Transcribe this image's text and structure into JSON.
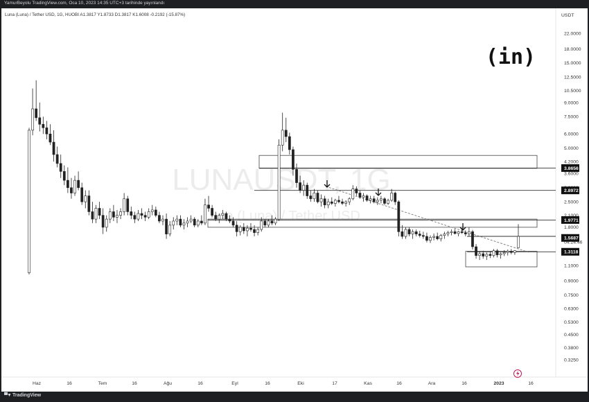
{
  "header": {
    "publisher_line": "YamurBeyolu TradingView.com, Oca 10, 2023 14:35 UTC+3 tarihinde yayınlandı"
  },
  "legend": {
    "line": "Luna (Luna) / Tether USD, 1G, HUOBI A1.3817 Y1.8733 D1.3817 K1.6008 -0.2192 (-15.87%)"
  },
  "watermark": {
    "symbol": "LUNAUSDT, 1G",
    "description": "Luna (Luna) / Tether USD"
  },
  "logo": {
    "text": "(in)"
  },
  "footer": {
    "brand": "TradingView"
  },
  "colors": {
    "up": "#ffffff",
    "down": "#222222",
    "trendline": "#777777",
    "accent_icon": "#c2185b"
  },
  "icons": [
    "down-arrow-icon",
    "lightning-icon",
    "tradingview-logo-icon"
  ],
  "chart_data": {
    "type": "candlestick",
    "title": "Luna (Luna) / Tether USD, 1G, HUOBI",
    "ylabel": "USDT",
    "y_scale": "log",
    "ylim": [
      0.29,
      24.5
    ],
    "xlabel": "",
    "x_ticks": [
      "Haz",
      "16",
      "Tem",
      "16",
      "Ağu",
      "16",
      "Eyl",
      "16",
      "Eki",
      "17",
      "Kas",
      "16",
      "Ara",
      "16",
      "2023",
      "16"
    ],
    "y_ticks": [
      "22.0000",
      "18.0000",
      "15.0000",
      "12.5000",
      "10.5000",
      "9.0000",
      "7.5000",
      "6.0000",
      "5.0000",
      "4.2000",
      "3.6000",
      "3.0000",
      "2.5000",
      "2.1000",
      "1.8000",
      "1.6008",
      "1.5687",
      "1.3118",
      "1.1000",
      "0.9000",
      "0.7500",
      "0.6300",
      "0.5300",
      "0.4500",
      "0.3800",
      "0.3250"
    ],
    "price_labels": [
      {
        "value": "3.8656",
        "style": "boxed"
      },
      {
        "value": "2.8972",
        "style": "boxed"
      },
      {
        "value": "1.9771",
        "style": "boxed"
      },
      {
        "value": "1.6008",
        "style": "plain"
      },
      {
        "value": "04:24:46",
        "style": "plain"
      },
      {
        "value": "1.5687",
        "style": "boxed"
      },
      {
        "value": "1.3118",
        "style": "boxed"
      }
    ],
    "last_price": "1.6008",
    "countdown": "04:24:46",
    "zones": [
      {
        "top": 4.55,
        "bottom": 3.85
      },
      {
        "top": 2.0,
        "bottom": 1.8
      },
      {
        "top": 1.32,
        "bottom": 1.08
      }
    ],
    "levels": [
      3.8656,
      2.8972,
      1.9771,
      1.6008,
      1.3118
    ],
    "trendline": {
      "from_price": 3.05,
      "to_price": 1.3,
      "style": "dashed"
    },
    "arrow_marks": 4,
    "ohlc": [
      [
        1.0,
        6.5,
        0.98,
        6.3
      ],
      [
        6.3,
        10.8,
        5.9,
        8.3
      ],
      [
        8.3,
        12.0,
        7.1,
        7.4
      ],
      [
        7.4,
        9.0,
        6.2,
        6.8
      ],
      [
        6.8,
        7.5,
        6.0,
        6.5
      ],
      [
        6.5,
        7.1,
        5.6,
        6.0
      ],
      [
        6.0,
        6.8,
        5.2,
        5.4
      ],
      [
        5.4,
        6.3,
        4.2,
        4.6
      ],
      [
        4.6,
        5.1,
        3.9,
        4.1
      ],
      [
        4.1,
        4.6,
        3.4,
        3.7
      ],
      [
        3.7,
        4.0,
        3.1,
        3.3
      ],
      [
        3.3,
        3.9,
        2.8,
        3.0
      ],
      [
        3.0,
        3.4,
        2.6,
        2.8
      ],
      [
        2.8,
        3.5,
        2.7,
        3.3
      ],
      [
        3.3,
        3.7,
        2.9,
        3.0
      ],
      [
        3.0,
        3.2,
        2.4,
        2.5
      ],
      [
        2.5,
        2.9,
        2.3,
        2.7
      ],
      [
        2.7,
        2.9,
        2.1,
        2.2
      ],
      [
        2.2,
        2.5,
        1.9,
        2.0
      ],
      [
        2.0,
        2.4,
        1.9,
        2.3
      ],
      [
        2.3,
        2.5,
        2.0,
        2.1
      ],
      [
        2.1,
        2.3,
        1.65,
        1.8
      ],
      [
        1.8,
        2.1,
        1.7,
        2.0
      ],
      [
        2.0,
        2.3,
        1.9,
        2.2
      ],
      [
        2.2,
        2.4,
        1.95,
        2.05
      ],
      [
        2.05,
        2.25,
        1.9,
        2.1
      ],
      [
        2.1,
        2.3,
        2.0,
        2.2
      ],
      [
        2.2,
        2.8,
        2.1,
        2.6
      ],
      [
        2.6,
        2.7,
        2.1,
        2.2
      ],
      [
        2.2,
        2.35,
        2.0,
        2.1
      ],
      [
        2.1,
        2.2,
        1.9,
        2.0
      ],
      [
        2.0,
        2.25,
        1.95,
        2.15
      ],
      [
        2.15,
        2.3,
        2.0,
        2.1
      ],
      [
        2.1,
        2.2,
        1.95,
        2.05
      ],
      [
        2.05,
        2.3,
        2.0,
        2.2
      ],
      [
        2.2,
        2.4,
        2.1,
        2.25
      ],
      [
        2.25,
        2.35,
        2.05,
        2.1
      ],
      [
        2.1,
        2.2,
        1.9,
        1.95
      ],
      [
        1.95,
        2.1,
        1.85,
        2.0
      ],
      [
        2.0,
        2.15,
        1.55,
        1.65
      ],
      [
        1.65,
        1.95,
        1.6,
        1.85
      ],
      [
        1.85,
        2.05,
        1.75,
        1.95
      ],
      [
        1.95,
        2.1,
        1.85,
        2.0
      ],
      [
        2.0,
        2.1,
        1.8,
        1.85
      ],
      [
        1.85,
        2.0,
        1.75,
        1.9
      ],
      [
        1.9,
        2.05,
        1.8,
        1.95
      ],
      [
        1.95,
        2.1,
        1.9,
        2.0
      ],
      [
        2.0,
        2.05,
        1.8,
        1.85
      ],
      [
        1.85,
        2.0,
        1.8,
        1.95
      ],
      [
        1.95,
        2.1,
        1.85,
        1.9
      ],
      [
        1.9,
        2.6,
        1.85,
        2.4
      ],
      [
        2.4,
        2.7,
        2.2,
        2.3
      ],
      [
        2.3,
        2.4,
        2.05,
        2.1
      ],
      [
        2.1,
        2.2,
        1.95,
        2.0
      ],
      [
        2.0,
        2.15,
        1.9,
        2.1
      ],
      [
        2.1,
        2.25,
        2.0,
        2.15
      ],
      [
        2.15,
        2.2,
        1.95,
        2.0
      ],
      [
        2.0,
        2.1,
        1.9,
        1.95
      ],
      [
        1.95,
        2.05,
        1.8,
        1.85
      ],
      [
        1.85,
        1.95,
        1.6,
        1.7
      ],
      [
        1.7,
        1.85,
        1.62,
        1.8
      ],
      [
        1.8,
        1.9,
        1.65,
        1.72
      ],
      [
        1.72,
        1.85,
        1.6,
        1.78
      ],
      [
        1.78,
        1.9,
        1.7,
        1.75
      ],
      [
        1.75,
        1.85,
        1.6,
        1.68
      ],
      [
        1.68,
        1.8,
        1.62,
        1.75
      ],
      [
        1.75,
        2.05,
        1.7,
        1.95
      ],
      [
        1.95,
        2.0,
        1.8,
        1.85
      ],
      [
        1.85,
        2.0,
        1.8,
        1.95
      ],
      [
        1.95,
        2.1,
        1.85,
        1.9
      ],
      [
        1.9,
        2.05,
        1.85,
        2.0
      ],
      [
        2.0,
        5.6,
        1.95,
        5.2
      ],
      [
        5.2,
        7.9,
        4.8,
        6.3
      ],
      [
        6.3,
        7.4,
        5.4,
        5.8
      ],
      [
        5.8,
        6.1,
        4.6,
        4.9
      ],
      [
        4.9,
        5.1,
        3.5,
        3.8
      ],
      [
        3.8,
        4.1,
        3.0,
        3.2
      ],
      [
        3.2,
        3.5,
        2.8,
        2.9
      ],
      [
        2.9,
        3.3,
        2.7,
        3.1
      ],
      [
        3.1,
        3.2,
        2.6,
        2.7
      ],
      [
        2.7,
        2.9,
        2.5,
        2.6
      ],
      [
        2.6,
        2.95,
        2.5,
        2.8
      ],
      [
        2.8,
        2.9,
        2.45,
        2.5
      ],
      [
        2.5,
        2.75,
        2.35,
        2.6
      ],
      [
        2.6,
        2.7,
        2.3,
        2.4
      ],
      [
        2.4,
        2.6,
        2.3,
        2.5
      ],
      [
        2.5,
        2.65,
        2.4,
        2.45
      ],
      [
        2.45,
        2.6,
        2.35,
        2.55
      ],
      [
        2.55,
        2.7,
        2.45,
        2.5
      ],
      [
        2.5,
        2.6,
        2.4,
        2.45
      ],
      [
        2.45,
        2.55,
        2.35,
        2.5
      ],
      [
        2.5,
        2.65,
        2.4,
        2.6
      ],
      [
        2.6,
        3.1,
        2.55,
        2.95
      ],
      [
        2.95,
        3.05,
        2.7,
        2.8
      ],
      [
        2.8,
        2.9,
        2.6,
        2.65
      ],
      [
        2.65,
        2.8,
        2.5,
        2.7
      ],
      [
        2.7,
        2.75,
        2.5,
        2.55
      ],
      [
        2.55,
        2.7,
        2.45,
        2.6
      ],
      [
        2.6,
        2.7,
        2.45,
        2.5
      ],
      [
        2.5,
        2.65,
        2.4,
        2.55
      ],
      [
        2.55,
        2.7,
        2.45,
        2.6
      ],
      [
        2.6,
        2.65,
        2.4,
        2.45
      ],
      [
        2.45,
        2.6,
        2.4,
        2.55
      ],
      [
        2.55,
        2.95,
        2.5,
        2.8
      ],
      [
        2.8,
        2.85,
        2.4,
        2.5
      ],
      [
        2.5,
        2.55,
        1.6,
        1.7
      ],
      [
        1.7,
        1.85,
        1.55,
        1.6
      ],
      [
        1.6,
        1.8,
        1.55,
        1.75
      ],
      [
        1.75,
        1.8,
        1.6,
        1.65
      ],
      [
        1.65,
        1.75,
        1.55,
        1.7
      ],
      [
        1.7,
        1.75,
        1.6,
        1.65
      ],
      [
        1.65,
        1.72,
        1.58,
        1.62
      ],
      [
        1.62,
        1.7,
        1.55,
        1.6
      ],
      [
        1.6,
        1.68,
        1.48,
        1.52
      ],
      [
        1.52,
        1.62,
        1.47,
        1.58
      ],
      [
        1.58,
        1.66,
        1.52,
        1.6
      ],
      [
        1.6,
        1.68,
        1.52,
        1.55
      ],
      [
        1.55,
        1.65,
        1.5,
        1.62
      ],
      [
        1.62,
        1.7,
        1.55,
        1.65
      ],
      [
        1.65,
        1.72,
        1.6,
        1.68
      ],
      [
        1.68,
        1.75,
        1.62,
        1.7
      ],
      [
        1.7,
        1.76,
        1.64,
        1.66
      ],
      [
        1.66,
        1.72,
        1.6,
        1.7
      ],
      [
        1.7,
        1.78,
        1.65,
        1.68
      ],
      [
        1.68,
        1.73,
        1.6,
        1.65
      ],
      [
        1.65,
        1.8,
        1.6,
        1.7
      ],
      [
        1.7,
        1.74,
        1.35,
        1.4
      ],
      [
        1.4,
        1.45,
        1.2,
        1.25
      ],
      [
        1.25,
        1.32,
        1.18,
        1.28
      ],
      [
        1.28,
        1.33,
        1.2,
        1.24
      ],
      [
        1.24,
        1.3,
        1.18,
        1.27
      ],
      [
        1.27,
        1.32,
        1.21,
        1.25
      ],
      [
        1.25,
        1.36,
        1.22,
        1.33
      ],
      [
        1.33,
        1.36,
        1.22,
        1.26
      ],
      [
        1.26,
        1.3,
        1.2,
        1.28
      ],
      [
        1.28,
        1.34,
        1.24,
        1.3
      ],
      [
        1.3,
        1.35,
        1.25,
        1.32
      ],
      [
        1.32,
        1.36,
        1.27,
        1.3
      ],
      [
        1.3,
        1.34,
        1.26,
        1.33
      ],
      [
        1.3817,
        1.8733,
        1.3817,
        1.6008
      ]
    ]
  }
}
